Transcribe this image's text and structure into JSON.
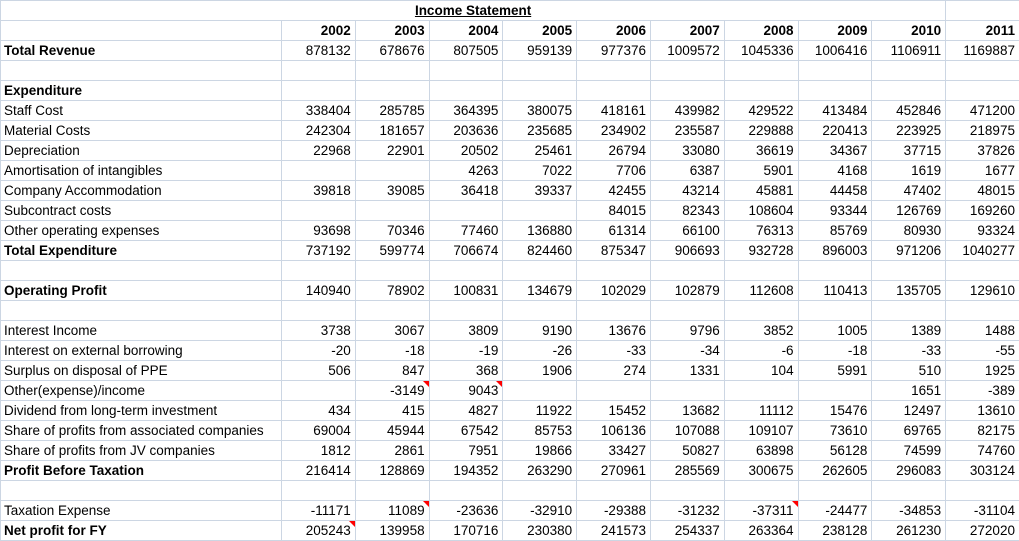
{
  "sheet": {
    "title": "Income Statement",
    "years": [
      "2002",
      "2003",
      "2004",
      "2005",
      "2006",
      "2007",
      "2008",
      "2009",
      "2010",
      "2011"
    ],
    "rows": [
      {
        "label": "Total Revenue",
        "bold": true,
        "values": [
          "878132",
          "678676",
          "807505",
          "959139",
          "977376",
          "1009572",
          "1045336",
          "1006416",
          "1106911",
          "1169887"
        ]
      },
      {
        "label": "",
        "values": [
          "",
          "",
          "",
          "",
          "",
          "",
          "",
          "",
          "",
          ""
        ]
      },
      {
        "label": "Expenditure",
        "bold": true,
        "values": [
          "",
          "",
          "",
          "",
          "",
          "",
          "",
          "",
          "",
          ""
        ]
      },
      {
        "label": "Staff Cost",
        "values": [
          "338404",
          "285785",
          "364395",
          "380075",
          "418161",
          "439982",
          "429522",
          "413484",
          "452846",
          "471200"
        ]
      },
      {
        "label": "Material Costs",
        "values": [
          "242304",
          "181657",
          "203636",
          "235685",
          "234902",
          "235587",
          "229888",
          "220413",
          "223925",
          "218975"
        ]
      },
      {
        "label": "Depreciation",
        "values": [
          "22968",
          "22901",
          "20502",
          "25461",
          "26794",
          "33080",
          "36619",
          "34367",
          "37715",
          "37826"
        ]
      },
      {
        "label": "Amortisation of intangibles",
        "values": [
          "",
          "",
          "4263",
          "7022",
          "7706",
          "6387",
          "5901",
          "4168",
          "1619",
          "1677"
        ]
      },
      {
        "label": "Company Accommodation",
        "values": [
          "39818",
          "39085",
          "36418",
          "39337",
          "42455",
          "43214",
          "45881",
          "44458",
          "47402",
          "48015"
        ]
      },
      {
        "label": "Subcontract costs",
        "values": [
          "",
          "",
          "",
          "",
          "84015",
          "82343",
          "108604",
          "93344",
          "126769",
          "169260"
        ]
      },
      {
        "label": "Other operating expenses",
        "values": [
          "93698",
          "70346",
          "77460",
          "136880",
          "61314",
          "66100",
          "76313",
          "85769",
          "80930",
          "93324"
        ]
      },
      {
        "label": "Total Expenditure",
        "bold": true,
        "values": [
          "737192",
          "599774",
          "706674",
          "824460",
          "875347",
          "906693",
          "932728",
          "896003",
          "971206",
          "1040277"
        ]
      },
      {
        "label": "",
        "values": [
          "",
          "",
          "",
          "",
          "",
          "",
          "",
          "",
          "",
          ""
        ]
      },
      {
        "label": "Operating Profit",
        "bold": true,
        "values": [
          "140940",
          "78902",
          "100831",
          "134679",
          "102029",
          "102879",
          "112608",
          "110413",
          "135705",
          "129610"
        ]
      },
      {
        "label": "",
        "values": [
          "",
          "",
          "",
          "",
          "",
          "",
          "",
          "",
          "",
          ""
        ]
      },
      {
        "label": "Interest Income",
        "values": [
          "3738",
          "3067",
          "3809",
          "9190",
          "13676",
          "9796",
          "3852",
          "1005",
          "1389",
          "1488"
        ]
      },
      {
        "label": "Interest on external borrowing",
        "values": [
          "-20",
          "-18",
          "-19",
          "-26",
          "-33",
          "-34",
          "-6",
          "-18",
          "-33",
          "-55"
        ]
      },
      {
        "label": "Surplus on disposal of PPE",
        "values": [
          "506",
          "847",
          "368",
          "1906",
          "274",
          "1331",
          "104",
          "5991",
          "510",
          "1925"
        ]
      },
      {
        "label": "Other(expense)/income",
        "values": [
          "",
          "-3149",
          "9043",
          "",
          "",
          "",
          "",
          "",
          "1651",
          "-389"
        ],
        "comment_cols": [
          1,
          2
        ]
      },
      {
        "label": "Dividend from long-term investment",
        "values": [
          "434",
          "415",
          "4827",
          "11922",
          "15452",
          "13682",
          "11112",
          "15476",
          "12497",
          "13610"
        ]
      },
      {
        "label": "Share of profits from associated companies",
        "values": [
          "69004",
          "45944",
          "67542",
          "85753",
          "106136",
          "107088",
          "109107",
          "73610",
          "69765",
          "82175"
        ]
      },
      {
        "label": "Share of profits from JV companies",
        "values": [
          "1812",
          "2861",
          "7951",
          "19866",
          "33427",
          "50827",
          "63898",
          "56128",
          "74599",
          "74760"
        ]
      },
      {
        "label": "Profit Before Taxation",
        "bold": true,
        "values": [
          "216414",
          "128869",
          "194352",
          "263290",
          "270961",
          "285569",
          "300675",
          "262605",
          "296083",
          "303124"
        ]
      },
      {
        "label": "",
        "values": [
          "",
          "",
          "",
          "",
          "",
          "",
          "",
          "",
          "",
          ""
        ]
      },
      {
        "label": "Taxation Expense",
        "values": [
          "-11171",
          "11089",
          "-23636",
          "-32910",
          "-29388",
          "-31232",
          "-37311",
          "-24477",
          "-34853",
          "-31104"
        ],
        "comment_cols": [
          1,
          6
        ]
      },
      {
        "label": "Net profit for FY",
        "bold": true,
        "values": [
          "205243",
          "139958",
          "170716",
          "230380",
          "241573",
          "254337",
          "263364",
          "238128",
          "261230",
          "272020"
        ],
        "comment_cols": [
          0
        ]
      }
    ]
  },
  "colors": {
    "gridline": "#ccd6e3",
    "comment_indicator": "#ff0000",
    "text": "#000000",
    "background": "#ffffff"
  }
}
